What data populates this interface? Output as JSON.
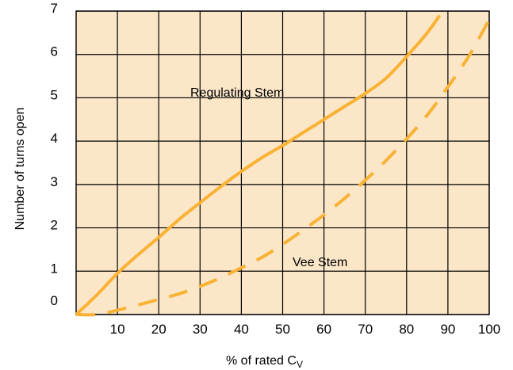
{
  "chart_data": {
    "type": "line",
    "title": "",
    "xlabel": "% of rated C",
    "xlabel_subscript": "V",
    "ylabel": "Number of turns open",
    "xlim": [
      0,
      100
    ],
    "ylim": [
      0,
      7
    ],
    "x_ticks": [
      10,
      20,
      30,
      40,
      50,
      60,
      70,
      80,
      90,
      100
    ],
    "y_ticks": [
      0,
      1,
      2,
      3,
      4,
      5,
      6,
      7
    ],
    "grid": true,
    "background_color": "#fbe6c8",
    "line_color": "#f9b233",
    "series": [
      {
        "name": "Regulating Stem",
        "style": "solid",
        "x": [
          0,
          5,
          10,
          15,
          20,
          25,
          30,
          35,
          40,
          45,
          50,
          55,
          60,
          65,
          70,
          75,
          80,
          85,
          88
        ],
        "y": [
          0,
          0.45,
          0.95,
          1.38,
          1.78,
          2.2,
          2.58,
          2.95,
          3.3,
          3.62,
          3.9,
          4.2,
          4.5,
          4.8,
          5.1,
          5.45,
          5.95,
          6.5,
          6.9
        ]
      },
      {
        "name": "Vee Stem",
        "style": "dashed",
        "x": [
          0,
          5,
          10,
          15,
          20,
          25,
          30,
          35,
          40,
          45,
          50,
          55,
          60,
          65,
          70,
          75,
          80,
          85,
          90,
          95,
          100
        ],
        "y": [
          0,
          0,
          0.1,
          0.22,
          0.35,
          0.48,
          0.65,
          0.85,
          1.08,
          1.32,
          1.62,
          1.95,
          2.3,
          2.68,
          3.1,
          3.55,
          4.05,
          4.6,
          5.25,
          5.95,
          6.8
        ]
      }
    ]
  }
}
